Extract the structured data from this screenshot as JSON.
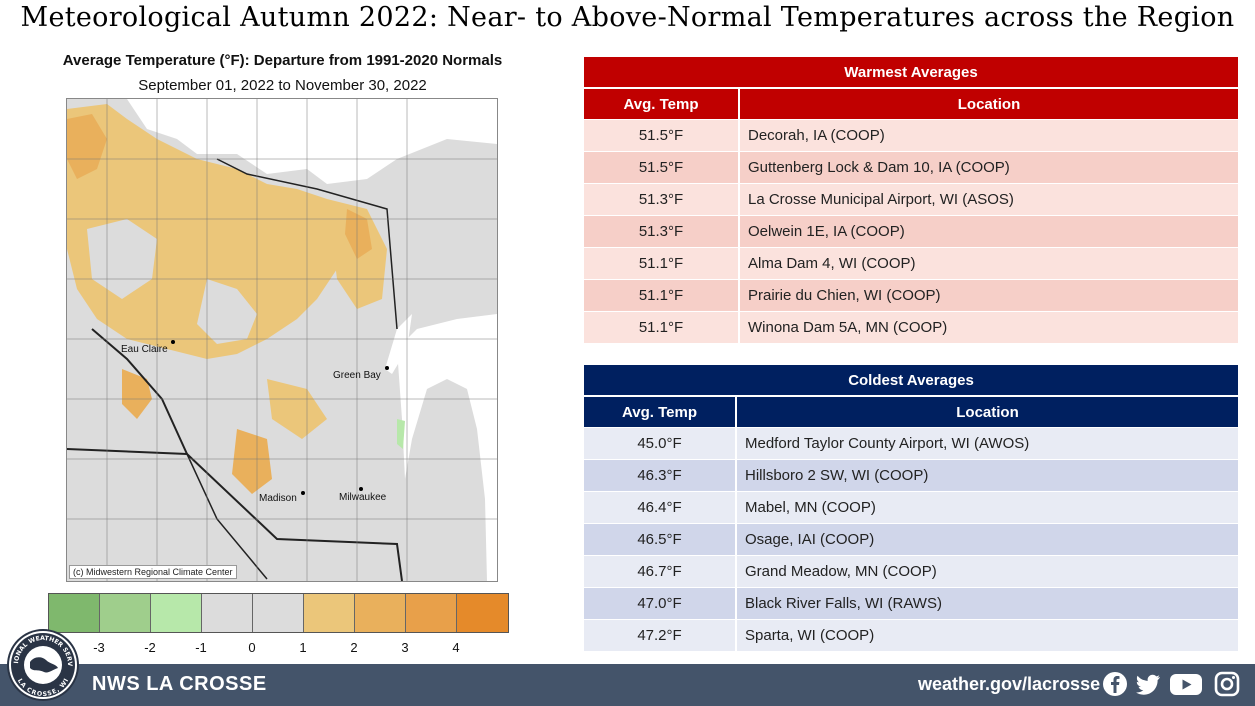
{
  "title": "Meteorological Autumn 2022:  Near- to Above-Normal Temperatures across the Region",
  "map": {
    "title": "Average Temperature (°F): Departure from 1991-2020 Normals",
    "subtitle": "September 01, 2022 to November 30, 2022",
    "credit": "(c) Midwestern Regional Climate Center",
    "cities": {
      "eau_claire": "Eau Claire",
      "green_bay": "Green Bay",
      "madison": "Madison",
      "milwaukee": "Milwaukee"
    }
  },
  "legend": {
    "colors": [
      "#7fb86d",
      "#9fce8c",
      "#b7e8aa",
      "#dcdcdc",
      "#dcdcdc",
      "#ebc67a",
      "#e9b05c",
      "#e8a04a",
      "#e58a2a"
    ],
    "labels": [
      "-3",
      "-2",
      "-1",
      "0",
      "1",
      "2",
      "3",
      "4"
    ]
  },
  "warmest": {
    "header": "Warmest  Averages",
    "col_temp": "Avg. Temp",
    "col_location": "Location",
    "rows": [
      {
        "temp": "51.5°F",
        "location": "Decorah, IA (COOP)"
      },
      {
        "temp": "51.5°F",
        "location": "Guttenberg  Lock & Dam 10, IA (COOP)"
      },
      {
        "temp": "51.3°F",
        "location": "La Crosse Municipal Airport,  WI (ASOS)"
      },
      {
        "temp": "51.3°F",
        "location": "Oelwein 1E, IA (COOP)"
      },
      {
        "temp": "51.1°F",
        "location": "Alma Dam 4, WI (COOP)"
      },
      {
        "temp": "51.1°F",
        "location": "Prairie  du  Chien, WI  (COOP)"
      },
      {
        "temp": "51.1°F",
        "location": "Winona Dam 5A, MN (COOP)"
      }
    ]
  },
  "coldest": {
    "header": "Coldest Averages",
    "col_temp": "Avg. Temp",
    "col_location": "Location",
    "rows": [
      {
        "temp": "45.0°F",
        "location": "Medford Taylor County Airport,  WI (AWOS)"
      },
      {
        "temp": "46.3°F",
        "location": "Hillsboro 2 SW, WI (COOP)"
      },
      {
        "temp": "46.4°F",
        "location": "Mabel, MN (COOP)"
      },
      {
        "temp": "46.5°F",
        "location": "Osage, IAI (COOP)"
      },
      {
        "temp": "46.7°F",
        "location": "Grand Meadow, MN (COOP)"
      },
      {
        "temp": "47.0°F",
        "location": "Black River Falls, WI (RAWS)"
      },
      {
        "temp": "47.2°F",
        "location": "Sparta, WI (COOP)"
      }
    ]
  },
  "footer": {
    "name": "NWS LA CROSSE",
    "url": "weather.gov/lacrosse",
    "logo_top": "NATIONAL WEATHER SERVICE",
    "logo_bottom": "LA CROSSE, WI",
    "icons": [
      "facebook-icon",
      "twitter-icon",
      "youtube-icon",
      "instagram-icon"
    ]
  }
}
